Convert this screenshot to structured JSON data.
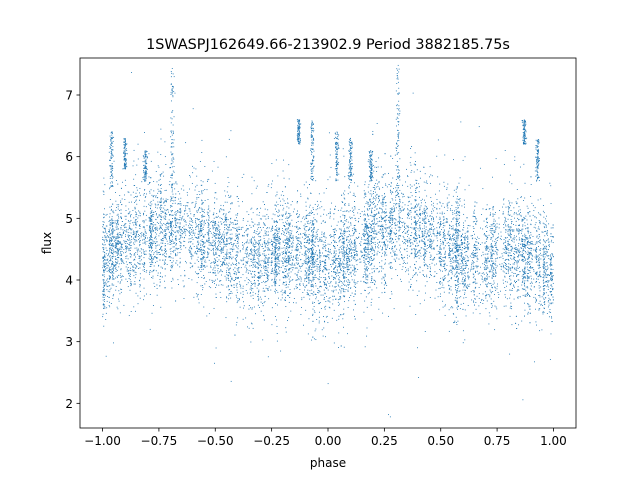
{
  "chart_data": {
    "type": "scatter",
    "title": "1SWASPJ162649.66-213902.9 Period 3882185.75s",
    "xlabel": "phase",
    "ylabel": "flux",
    "xlim": [
      -1.1,
      1.1
    ],
    "ylim": [
      1.6,
      7.6
    ],
    "xticks": [
      -1.0,
      -0.75,
      -0.5,
      -0.25,
      0.0,
      0.25,
      0.5,
      0.75,
      1.0
    ],
    "xtick_labels": [
      "−1.00",
      "−0.75",
      "−0.50",
      "−0.25",
      "0.00",
      "0.25",
      "0.50",
      "0.75",
      "1.00"
    ],
    "yticks": [
      2,
      3,
      4,
      5,
      6,
      7
    ],
    "ytick_labels": [
      "2",
      "3",
      "4",
      "5",
      "6",
      "7"
    ],
    "grid": false,
    "marker_color": "#1f77b4",
    "phase_range": [
      -1.0,
      1.0
    ],
    "baseline_profile": [
      {
        "phase": -1.0,
        "flux": 4.3
      },
      {
        "phase": -0.9,
        "flux": 4.6
      },
      {
        "phase": -0.8,
        "flux": 4.75
      },
      {
        "phase": -0.7,
        "flux": 4.9
      },
      {
        "phase": -0.6,
        "flux": 4.85
      },
      {
        "phase": -0.5,
        "flux": 4.6
      },
      {
        "phase": -0.4,
        "flux": 4.4
      },
      {
        "phase": -0.3,
        "flux": 4.3
      },
      {
        "phase": -0.2,
        "flux": 4.5
      },
      {
        "phase": -0.1,
        "flux": 4.4
      },
      {
        "phase": 0.0,
        "flux": 4.1
      },
      {
        "phase": 0.1,
        "flux": 4.5
      },
      {
        "phase": 0.2,
        "flux": 4.75
      },
      {
        "phase": 0.3,
        "flux": 4.9
      },
      {
        "phase": 0.4,
        "flux": 4.85
      },
      {
        "phase": 0.5,
        "flux": 4.6
      },
      {
        "phase": 0.6,
        "flux": 4.4
      },
      {
        "phase": 0.7,
        "flux": 4.3
      },
      {
        "phase": 0.8,
        "flux": 4.5
      },
      {
        "phase": 0.9,
        "flux": 4.4
      },
      {
        "phase": 1.0,
        "flux": 4.1
      }
    ],
    "flare_clusters": [
      {
        "phase": -0.96,
        "flux_range": [
          5.5,
          6.4
        ]
      },
      {
        "phase": -0.9,
        "flux_range": [
          5.8,
          6.3
        ]
      },
      {
        "phase": -0.81,
        "flux_range": [
          5.6,
          6.1
        ]
      },
      {
        "phase": -0.69,
        "flux_range": [
          5.2,
          7.5
        ]
      },
      {
        "phase": -0.13,
        "flux_range": [
          6.2,
          6.6
        ]
      },
      {
        "phase": -0.07,
        "flux_range": [
          5.6,
          6.6
        ]
      },
      {
        "phase": 0.04,
        "flux_range": [
          5.6,
          6.4
        ]
      },
      {
        "phase": 0.1,
        "flux_range": [
          5.6,
          6.3
        ]
      },
      {
        "phase": 0.19,
        "flux_range": [
          5.6,
          6.1
        ]
      },
      {
        "phase": 0.31,
        "flux_range": [
          5.3,
          7.5
        ]
      },
      {
        "phase": 0.87,
        "flux_range": [
          6.2,
          6.6
        ]
      },
      {
        "phase": 0.93,
        "flux_range": [
          5.6,
          6.3
        ]
      }
    ]
  }
}
